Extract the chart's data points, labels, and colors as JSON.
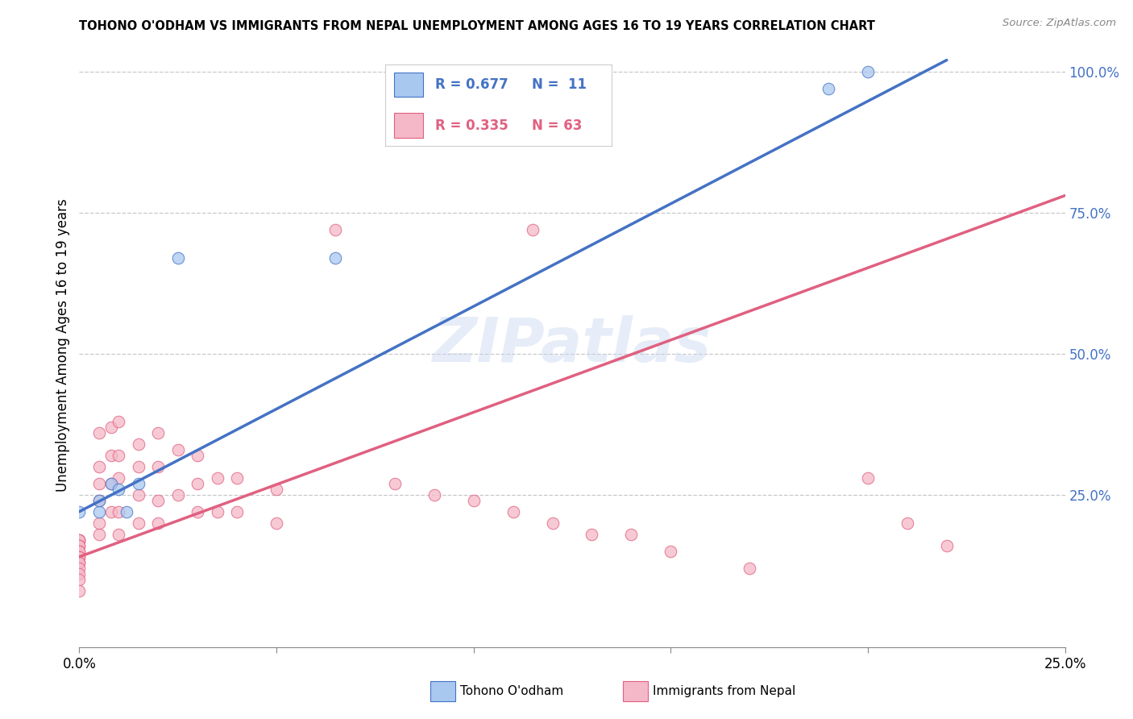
{
  "title": "TOHONO O'ODHAM VS IMMIGRANTS FROM NEPAL UNEMPLOYMENT AMONG AGES 16 TO 19 YEARS CORRELATION CHART",
  "source": "Source: ZipAtlas.com",
  "ylabel": "Unemployment Among Ages 16 to 19 years",
  "xlim": [
    0.0,
    0.25
  ],
  "ylim": [
    -0.02,
    1.05
  ],
  "y_ticks_right": [
    0.25,
    0.5,
    0.75,
    1.0
  ],
  "y_tick_labels_right": [
    "25.0%",
    "50.0%",
    "75.0%",
    "100.0%"
  ],
  "color_blue": "#A8C8F0",
  "color_pink": "#F5B8C8",
  "color_blue_line": "#4472C4",
  "color_pink_line": "#E06080",
  "color_axis_right": "#4472C4",
  "color_grid": "#C8C8C8",
  "bg_color": "#FFFFFF",
  "watermark": "ZIPatlas",
  "blue_line_x0": 0.0,
  "blue_line_y0": 0.22,
  "blue_line_x1": 0.22,
  "blue_line_y1": 1.02,
  "pink_line_x0": 0.0,
  "pink_line_y0": 0.14,
  "pink_line_x1": 0.25,
  "pink_line_y1": 0.78,
  "tohono_x": [
    0.0,
    0.005,
    0.005,
    0.008,
    0.01,
    0.012,
    0.015,
    0.025,
    0.065,
    0.19,
    0.2
  ],
  "tohono_y": [
    0.22,
    0.22,
    0.24,
    0.27,
    0.26,
    0.22,
    0.27,
    0.67,
    0.67,
    0.97,
    1.0
  ],
  "nepal_x": [
    0.0,
    0.0,
    0.0,
    0.0,
    0.0,
    0.0,
    0.0,
    0.0,
    0.0,
    0.0,
    0.0,
    0.0,
    0.0,
    0.0,
    0.0,
    0.005,
    0.005,
    0.005,
    0.005,
    0.005,
    0.005,
    0.008,
    0.008,
    0.008,
    0.008,
    0.01,
    0.01,
    0.01,
    0.01,
    0.01,
    0.015,
    0.015,
    0.015,
    0.015,
    0.02,
    0.02,
    0.02,
    0.02,
    0.025,
    0.025,
    0.03,
    0.03,
    0.03,
    0.035,
    0.035,
    0.04,
    0.04,
    0.05,
    0.05,
    0.065,
    0.08,
    0.09,
    0.1,
    0.11,
    0.115,
    0.12,
    0.13,
    0.14,
    0.15,
    0.17,
    0.2,
    0.21,
    0.22
  ],
  "nepal_y": [
    0.17,
    0.17,
    0.17,
    0.16,
    0.16,
    0.15,
    0.15,
    0.14,
    0.14,
    0.13,
    0.13,
    0.12,
    0.11,
    0.1,
    0.08,
    0.36,
    0.3,
    0.27,
    0.24,
    0.2,
    0.18,
    0.37,
    0.32,
    0.27,
    0.22,
    0.38,
    0.32,
    0.28,
    0.22,
    0.18,
    0.34,
    0.3,
    0.25,
    0.2,
    0.36,
    0.3,
    0.24,
    0.2,
    0.33,
    0.25,
    0.32,
    0.27,
    0.22,
    0.28,
    0.22,
    0.28,
    0.22,
    0.26,
    0.2,
    0.72,
    0.27,
    0.25,
    0.24,
    0.22,
    0.72,
    0.2,
    0.18,
    0.18,
    0.15,
    0.12,
    0.28,
    0.2,
    0.16
  ]
}
